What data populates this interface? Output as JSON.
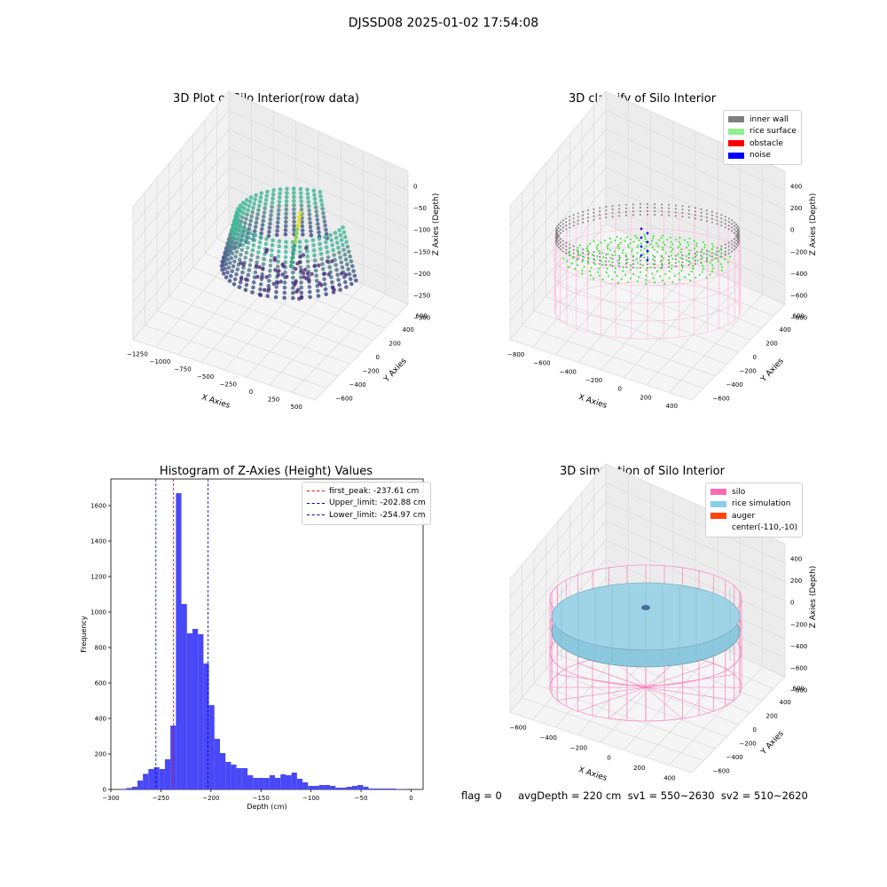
{
  "suptitle": "DJSSD08 2025-01-02 17:54:08",
  "footer": "flag = 0     avgDepth = 220 cm  sv1 = 550~2630  sv2 = 510~2620",
  "panels": {
    "raw": {
      "title": "3D Plot of Silo Interior(row data)",
      "xlabel": "X Axies",
      "ylabel": "Y Axies",
      "zlabel": "Z Axies (Depth)",
      "xticks": [
        "−1250",
        "−1000",
        "−750",
        "−500",
        "−250",
        "0",
        "250",
        "500"
      ],
      "yticks": [
        "600",
        "400",
        "200",
        "0",
        "−200",
        "−400",
        "−600"
      ],
      "zticks": [
        "0",
        "−50",
        "−100",
        "−150",
        "−200",
        "−250",
        "−300"
      ]
    },
    "classify": {
      "title": "3D classify of Silo Interior",
      "xlabel": "X Axies",
      "ylabel": "Y Axies",
      "zlabel": "Z Axies (Depth)",
      "xticks": [
        "−800",
        "−600",
        "−400",
        "−200",
        "0",
        "200",
        "400"
      ],
      "yticks": [
        "600",
        "400",
        "200",
        "0",
        "−200",
        "−400",
        "−600"
      ],
      "zticks": [
        "400",
        "200",
        "0",
        "−200",
        "−400",
        "−600",
        "−800"
      ],
      "legend": [
        {
          "label": "inner wall",
          "color": "#808080"
        },
        {
          "label": "rice surface",
          "color": "#90ee90"
        },
        {
          "label": "obstacle",
          "color": "#ff0000"
        },
        {
          "label": "noise",
          "color": "#0000ff"
        }
      ]
    },
    "simulation": {
      "title": "3D simulation of Silo Interior",
      "xlabel": "X Axies",
      "ylabel": "Y Axies",
      "zlabel": "Z Axies (Depth)",
      "xticks": [
        "−600",
        "−400",
        "−200",
        "0",
        "200",
        "400"
      ],
      "yticks": [
        "600",
        "400",
        "200",
        "0",
        "−200",
        "−400",
        "−600"
      ],
      "zticks": [
        "400",
        "200",
        "0",
        "−200",
        "−400",
        "−600",
        "−800"
      ],
      "legend": [
        {
          "label": "silo",
          "color": "#ff69b4"
        },
        {
          "label": "rice simulation",
          "color": "#87ceeb"
        },
        {
          "label": "auger",
          "color": "#ff4500"
        },
        {
          "label": "center(-110,-10)",
          "color": ""
        }
      ]
    }
  },
  "chart_data": {
    "type": "bar",
    "title": "Histogram of Z-Axies (Height) Values",
    "xlabel": "Depth (cm)",
    "ylabel": "Frequency",
    "xlim": [
      -300,
      12
    ],
    "ylim": [
      0,
      1750
    ],
    "xticks": [
      -300,
      -250,
      -200,
      -150,
      -100,
      -50,
      0
    ],
    "yticks": [
      0,
      200,
      400,
      600,
      800,
      1000,
      1200,
      1400,
      1600
    ],
    "bin_start": -290,
    "bin_width": 5.5,
    "values": [
      3,
      8,
      15,
      50,
      88,
      115,
      125,
      115,
      170,
      360,
      1670,
      1045,
      880,
      905,
      875,
      710,
      475,
      285,
      205,
      155,
      140,
      120,
      120,
      80,
      65,
      65,
      65,
      80,
      65,
      85,
      80,
      95,
      60,
      40,
      20,
      20,
      25,
      25,
      20,
      10,
      10,
      15,
      20,
      25,
      15,
      5,
      5,
      5,
      5,
      5,
      2,
      1
    ],
    "lines": [
      {
        "label": "first_peak: -237.61 cm",
        "value": -237.61,
        "color": "#ff0000"
      },
      {
        "label": "Upper_limit: -202.88 cm",
        "value": -202.88,
        "color": "#0000aa"
      },
      {
        "label": "Lower_limit: -254.97 cm",
        "value": -254.97,
        "color": "#0000aa"
      }
    ],
    "bar_color": "#4848f8"
  }
}
